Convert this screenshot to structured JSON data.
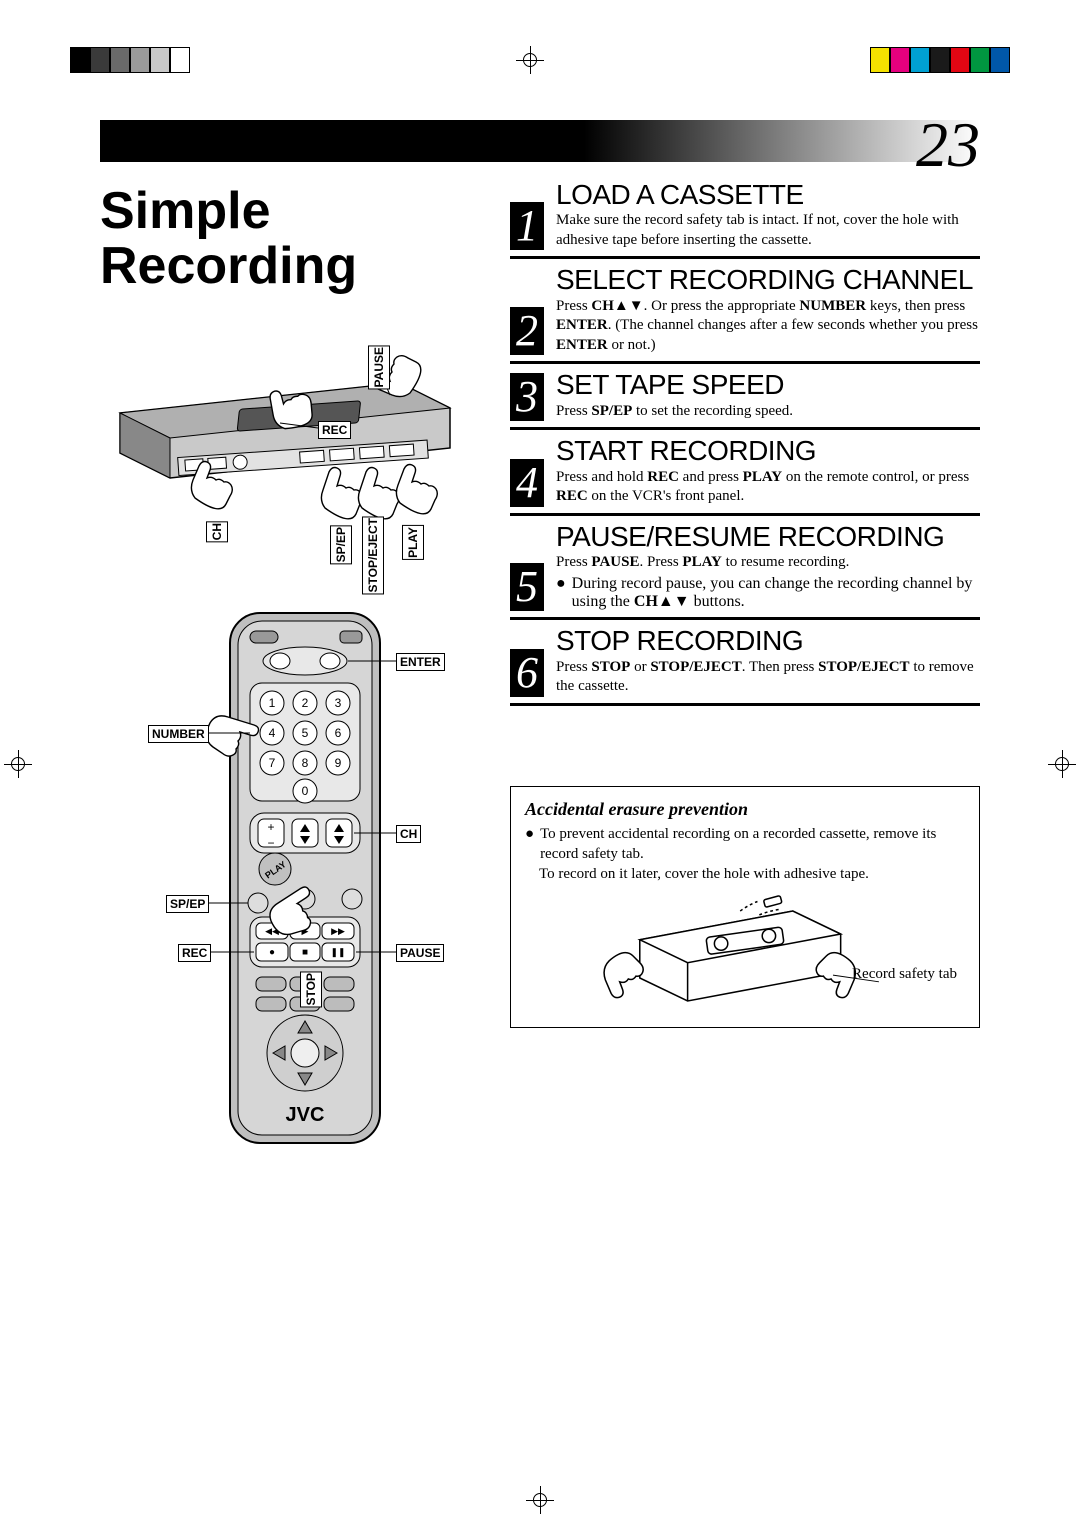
{
  "page_number": "23",
  "main_title_line1": "Simple",
  "main_title_line2": "Recording",
  "registration_colors_left": [
    "#000000",
    "#3a3a3a",
    "#6a6a6a",
    "#9a9a9a",
    "#c8c8c8",
    "#ffffff"
  ],
  "registration_colors_right": [
    "#f5e100",
    "#e6007e",
    "#00a0d2",
    "#1a1a1a",
    "#e30613",
    "#009640",
    "#0057a8"
  ],
  "vcr_labels": {
    "pause": "PAUSE",
    "rec": "REC",
    "ch": "CH",
    "sp_ep": "SP/EP",
    "stop_eject": "STOP/EJECT",
    "play": "PLAY"
  },
  "remote_labels": {
    "enter": "ENTER",
    "number": "NUMBER",
    "ch": "CH",
    "sp_ep": "SP/EP",
    "pause": "PAUSE",
    "rec": "REC",
    "stop": "STOP",
    "play": "PLAY",
    "brand": "JVC"
  },
  "steps": [
    {
      "num": "1",
      "heading": "LOAD A CASSETTE",
      "body_html": "Make sure the record safety tab is intact. If not, cover the hole with adhesive tape before inserting the cassette."
    },
    {
      "num": "2",
      "heading": "SELECT RECORDING CHANNEL",
      "body_html": "Press <b>CH</b>▲▼. Or press the appropriate <b>NUMBER</b> keys, then press <b>ENTER</b>. (The channel changes after a few seconds whether you press <b>ENTER</b> or not.)"
    },
    {
      "num": "3",
      "heading": "SET TAPE SPEED",
      "body_html": "Press <b>SP/EP</b> to set the recording speed."
    },
    {
      "num": "4",
      "heading": "START RECORDING",
      "body_html": "Press and hold <b>REC</b> and press <b>PLAY</b> on the remote control, or press <b>REC</b> on the VCR's front panel."
    },
    {
      "num": "5",
      "heading": "PAUSE/RESUME RECORDING",
      "body_html": "Press <b>PAUSE</b>. Press <b>PLAY</b> to resume recording.",
      "bullet_html": "During record pause, you can change the recording channel by using the <b>CH</b>▲▼ buttons."
    },
    {
      "num": "6",
      "heading": "STOP RECORDING",
      "body_html": "Press <b>STOP</b> or <b>STOP/EJECT</b>. Then press <b>STOP/EJECT</b> to remove the cassette."
    }
  ],
  "note": {
    "title": "Accidental erasure prevention",
    "bullet_html": "To prevent accidental recording on a recorded cassette, remove its record safety tab.",
    "line2": "To record on it later, cover the hole with adhesive tape.",
    "figure_label": "Record safety tab"
  },
  "colors": {
    "text": "#000000",
    "page_bg": "#ffffff",
    "header_gradient_start": "#000000",
    "header_gradient_end": "#ffffff"
  },
  "fonts": {
    "title_family": "Arial, Helvetica, sans-serif",
    "title_size_pt": 39,
    "heading_family": "Gill Sans, Trebuchet MS, Arial",
    "heading_size_pt": 21,
    "body_family": "Times New Roman, serif",
    "body_size_pt": 11,
    "pagenum_size_pt": 48
  }
}
